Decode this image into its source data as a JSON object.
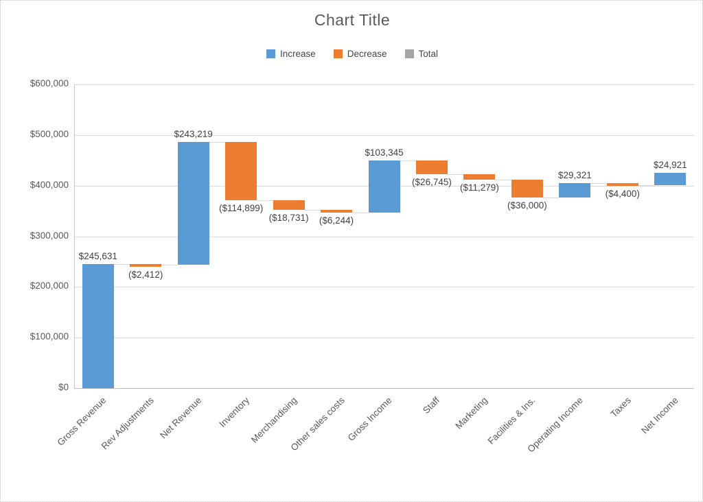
{
  "colors": {
    "increase": "#5B9BD5",
    "decrease": "#ED7D31",
    "total": "#A5A5A5",
    "gridline": "#D9D9D9",
    "axis_line": "#BFBFBF",
    "connector": "#D9D9D9",
    "title_text": "#595959",
    "axis_text": "#595959",
    "label_text": "#404040"
  },
  "legend": {
    "items": [
      {
        "label": "Increase",
        "key": "increase"
      },
      {
        "label": "Decrease",
        "key": "decrease"
      },
      {
        "label": "Total",
        "key": "total"
      }
    ]
  },
  "chart_data": {
    "type": "bar",
    "subtype": "waterfall",
    "title": "Chart Title",
    "legend_position": "top",
    "grid": true,
    "connector_lines": true,
    "y_axis": {
      "min": 0,
      "max": 600000,
      "step": 100000,
      "tick_labels": [
        "$0",
        "$100,000",
        "$200,000",
        "$300,000",
        "$400,000",
        "$500,000",
        "$600,000"
      ]
    },
    "categories": [
      "Gross Revenue",
      "Rev Adjustments",
      "Net Revenue",
      "Inventory",
      "Merchandising",
      "Other sales costs",
      "Gross Income",
      "Staff",
      "Marketing",
      "Facilities & Ins.",
      "Operating Income",
      "Taxes",
      "Net Income"
    ],
    "points": [
      {
        "category": "Gross Revenue",
        "value": 245631,
        "direction": "increase",
        "label": "$245,631"
      },
      {
        "category": "Rev Adjustments",
        "value": -2412,
        "direction": "decrease",
        "label": "($2,412)"
      },
      {
        "category": "Net Revenue",
        "value": 243219,
        "direction": "increase",
        "label": "$243,219"
      },
      {
        "category": "Inventory",
        "value": -114899,
        "direction": "decrease",
        "label": "($114,899)"
      },
      {
        "category": "Merchandising",
        "value": -18731,
        "direction": "decrease",
        "label": "($18,731)"
      },
      {
        "category": "Other sales costs",
        "value": -6244,
        "direction": "decrease",
        "label": "($6,244)"
      },
      {
        "category": "Gross Income",
        "value": 103345,
        "direction": "increase",
        "label": "$103,345"
      },
      {
        "category": "Staff",
        "value": -26745,
        "direction": "decrease",
        "label": "($26,745)"
      },
      {
        "category": "Marketing",
        "value": -11279,
        "direction": "decrease",
        "label": "($11,279)"
      },
      {
        "category": "Facilities & Ins.",
        "value": -36000,
        "direction": "decrease",
        "label": "($36,000)"
      },
      {
        "category": "Operating Income",
        "value": 29321,
        "direction": "increase",
        "label": "$29,321"
      },
      {
        "category": "Taxes",
        "value": -4400,
        "direction": "decrease",
        "label": "($4,400)"
      },
      {
        "category": "Net Income",
        "value": 24921,
        "direction": "increase",
        "label": "$24,921"
      }
    ]
  }
}
